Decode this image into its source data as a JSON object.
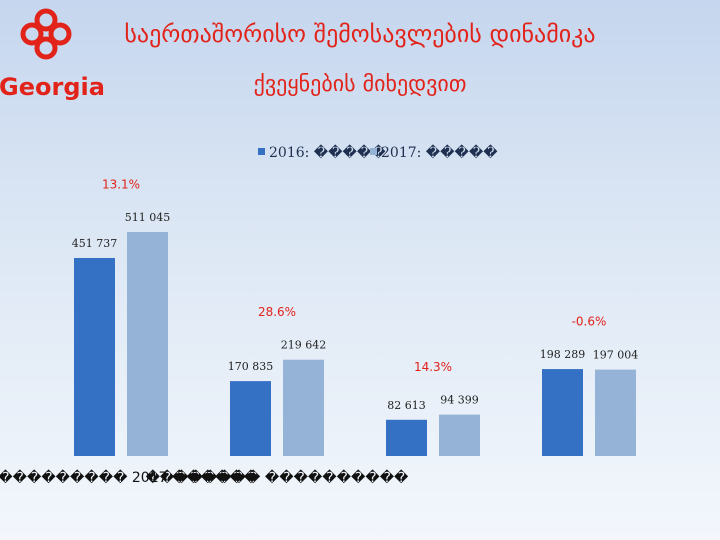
{
  "logo": "Georgia",
  "chart_data": {
    "type": "bar",
    "title": "საერთაშორისო შემოსავლების დინამიკა",
    "subtitle": "ქვეყნების მიხედვით",
    "categories": [
      "���������� 2017 ������",
      "�������� ����������",
      "",
      ""
    ],
    "series": [
      {
        "name": "2016: �����",
        "color": "#3470c4",
        "values": [
          451737,
          170835,
          82613,
          198289
        ],
        "value_labels": [
          "451 737",
          "170 835",
          "82 613",
          "198 289"
        ]
      },
      {
        "name": "2017: �����",
        "color": "#95b3d7",
        "values": [
          511045,
          219642,
          94399,
          197004
        ],
        "value_labels": [
          "511 045",
          "219 642",
          "94 399",
          "197 004"
        ]
      }
    ],
    "annotations": [
      "13.1%",
      "28.6%",
      "14.3%",
      "-0.6%"
    ],
    "ylim": [
      0,
      600000
    ],
    "legend": "top"
  }
}
